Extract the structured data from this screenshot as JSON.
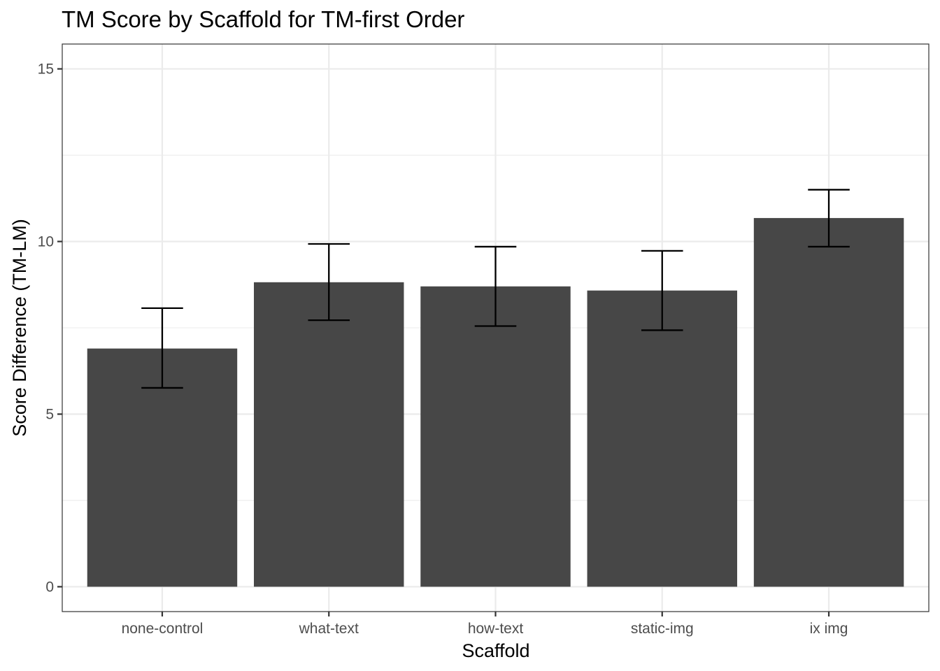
{
  "chart_data": {
    "type": "bar",
    "title": "TM Score by Scaffold for TM-first Order",
    "xlabel": "Scaffold",
    "ylabel": "Score Difference (TM-LM)",
    "categories": [
      "none-control",
      "what-text",
      "how-text",
      "static-img",
      "ix img"
    ],
    "values": [
      6.9,
      8.82,
      8.7,
      8.58,
      10.68
    ],
    "error_low": [
      5.76,
      7.72,
      7.55,
      7.43,
      9.85
    ],
    "error_high": [
      8.07,
      9.93,
      9.85,
      9.73,
      11.5
    ],
    "ylim": [
      -0.72,
      15.72
    ],
    "yticks": [
      0,
      5,
      10,
      15
    ],
    "ytick_labels": [
      "0",
      "5",
      "10",
      "15"
    ],
    "grid": true,
    "legend": "none",
    "bar_color": "#474747",
    "errorbar_color": "#000000"
  }
}
